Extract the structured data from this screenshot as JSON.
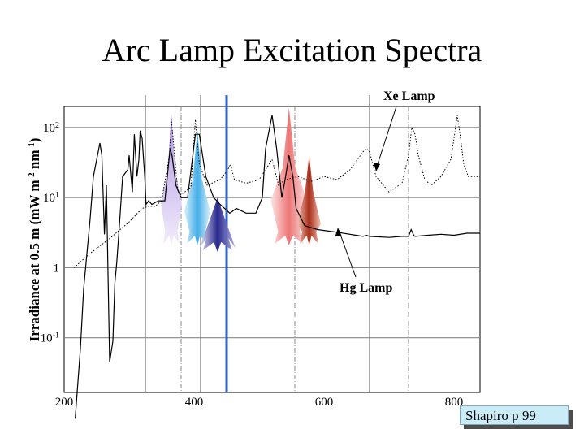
{
  "title": "Arc Lamp Excitation Spectra",
  "source_label": "Shapiro p 99",
  "chart_data": {
    "type": "line",
    "title": "Arc Lamp Excitation Spectra",
    "xlabel": "",
    "ylabel": "Irradiance at 0.5 m (mW m-2 nm-1)",
    "xlim": [
      200,
      840
    ],
    "ylog": true,
    "x_ticks": [
      "200",
      "400",
      "600",
      "800"
    ],
    "y_ticks": [
      {
        "value": 100,
        "base": "10",
        "exp": "2"
      },
      {
        "value": 10,
        "base": "10",
        "exp": "1"
      },
      {
        "value": 1,
        "base": "1",
        "exp": ""
      },
      {
        "value": 0.1,
        "base": "10",
        "exp": "-1"
      }
    ],
    "vertical_lines": [
      {
        "x": 325,
        "style": "solid",
        "color": "#888888"
      },
      {
        "x": 380,
        "style": "dashdot",
        "color": "#888888"
      },
      {
        "x": 410,
        "style": "solid",
        "color": "#888888"
      },
      {
        "x": 450,
        "style": "solid-thick",
        "color": "#3366cc"
      },
      {
        "x": 555,
        "style": "dashdot",
        "color": "#888888"
      },
      {
        "x": 670,
        "style": "solid",
        "color": "#888888"
      },
      {
        "x": 730,
        "style": "dashdot",
        "color": "#888888"
      }
    ],
    "series": [
      {
        "name": "Hg Lamp",
        "style": "solid",
        "color": "#000000",
        "x": [
          217,
          225,
          230,
          240,
          245,
          255,
          258,
          262,
          265,
          270,
          275,
          278,
          281,
          285,
          290,
          298,
          300,
          305,
          308,
          312,
          315,
          317,
          320,
          324,
          326,
          330,
          335,
          345,
          355,
          363,
          366,
          372,
          380,
          390,
          398,
          402,
          408,
          418,
          430,
          440,
          455,
          465,
          480,
          495,
          505,
          510,
          520,
          527,
          535,
          540,
          546,
          552,
          557,
          570,
          577,
          590,
          620,
          660,
          665,
          670,
          700,
          720,
          730,
          734,
          738,
          740,
          760,
          780,
          800,
          820,
          840
        ],
        "y": [
          0.007,
          0.07,
          0.5,
          5,
          20,
          60,
          40,
          3,
          15,
          0.045,
          0.09,
          0.6,
          1.2,
          4,
          20,
          25,
          40,
          12,
          80,
          20,
          35,
          90,
          70,
          20,
          8,
          9,
          8,
          9,
          9,
          50,
          40,
          15,
          10,
          10,
          40,
          80,
          80,
          20,
          10,
          8,
          6,
          7,
          6,
          6,
          10,
          50,
          150,
          50,
          10,
          18,
          40,
          20,
          7,
          4,
          3.8,
          3.5,
          3.2,
          2.8,
          2.9,
          2.8,
          2.7,
          2.8,
          2.8,
          3.5,
          2.9,
          2.8,
          2.9,
          3.0,
          2.9,
          3.1,
          3.1
        ]
      },
      {
        "name": "Xe Lamp",
        "style": "dotted",
        "color": "#000000",
        "x": [
          215,
          240,
          270,
          300,
          320,
          330,
          340,
          350,
          362,
          365,
          370,
          375,
          380,
          395,
          402,
          408,
          420,
          440,
          452,
          456,
          462,
          480,
          500,
          520,
          530,
          540,
          560,
          580,
          600,
          620,
          640,
          660,
          665,
          670,
          680,
          700,
          720,
          730,
          735,
          740,
          745,
          755,
          765,
          780,
          795,
          800,
          805,
          810,
          815,
          822,
          840
        ],
        "y": [
          1,
          1.6,
          2.6,
          4.5,
          7,
          7.5,
          7.5,
          9,
          40,
          130,
          40,
          12,
          11,
          14,
          130,
          30,
          15,
          18,
          25,
          30,
          18,
          16,
          18,
          35,
          15,
          18,
          20,
          17,
          20,
          18,
          25,
          45,
          50,
          45,
          20,
          12,
          16,
          40,
          100,
          80,
          40,
          18,
          15,
          20,
          35,
          70,
          150,
          70,
          30,
          20,
          20
        ]
      }
    ],
    "annotations": [
      {
        "text": "Xe Lamp",
        "points_to_x": 665
      },
      {
        "text": "Hg Lamp",
        "points_to_x": 630
      }
    ],
    "highlight_peaks": [
      {
        "center": 365,
        "peak": 160,
        "color": "#c8a8ef"
      },
      {
        "center": 405,
        "peak": 90,
        "color": "#6fc4ee"
      },
      {
        "center": 436,
        "peak": 10,
        "color": "#2a2a90"
      },
      {
        "center": 546,
        "peak": 190,
        "color": "#f08888"
      },
      {
        "center": 577,
        "peak": 40,
        "color": "#b02a12"
      }
    ]
  }
}
